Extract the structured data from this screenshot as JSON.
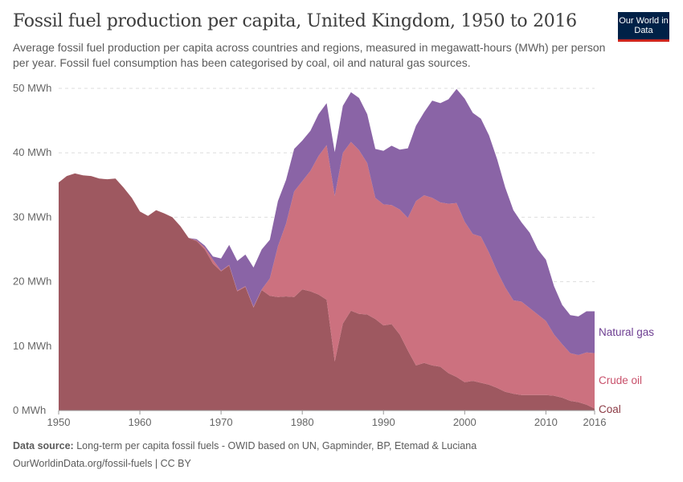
{
  "header": {
    "title": "Fossil fuel production per capita, United Kingdom, 1950 to 2016",
    "subtitle": "Average fossil fuel production per capita across countries and regions, measured in megawatt-hours (MWh) per person per year. Fossil fuel consumption has been categorised by coal, oil and natural gas sources.",
    "logo": "Our World in Data"
  },
  "footer": {
    "source_label": "Data source:",
    "source_text": "Long-term per capita fossil fuels - OWID based on UN, Gapminder, BP, Etemad & Luciana",
    "link": "OurWorldinData.org/fossil-fuels | CC BY"
  },
  "chart_data": {
    "type": "area",
    "stacked": true,
    "title": "Fossil fuel production per capita, United Kingdom, 1950 to 2016",
    "xlabel": "",
    "ylabel": "",
    "xlim": [
      1950,
      2016
    ],
    "ylim": [
      0,
      50
    ],
    "grid": "horizontal dashed",
    "legend": "right, inline labels",
    "x_ticks": [
      "1950",
      "1960",
      "1970",
      "1980",
      "1990",
      "2000",
      "2010",
      "2016"
    ],
    "y_ticks": [
      "0 MWh",
      "10 MWh",
      "20 MWh",
      "30 MWh",
      "40 MWh",
      "50 MWh"
    ],
    "x_start": 1950,
    "series": [
      {
        "name": "Coal",
        "color": "#9e5860",
        "label_color": "#8b3a44",
        "values": [
          35.4,
          36.4,
          36.8,
          36.5,
          36.4,
          36.0,
          35.9,
          36.0,
          34.6,
          33.0,
          30.9,
          30.2,
          31.1,
          30.6,
          30.0,
          28.6,
          26.8,
          26.3,
          25.0,
          22.8,
          21.6,
          22.5,
          18.5,
          19.2,
          16.0,
          18.7,
          17.8,
          17.6,
          17.7,
          17.6,
          18.8,
          18.5,
          18.0,
          17.2,
          7.6,
          13.5,
          15.5,
          15.0,
          14.9,
          14.2,
          13.2,
          13.4,
          11.8,
          9.3,
          7.0,
          7.4,
          7.0,
          6.8,
          5.8,
          5.2,
          4.4,
          4.6,
          4.3,
          4.0,
          3.5,
          2.9,
          2.6,
          2.4,
          2.4,
          2.4,
          2.4,
          2.3,
          2.0,
          1.5,
          1.3,
          0.9,
          0.3
        ]
      },
      {
        "name": "Crude oil",
        "color": "#cc717f",
        "label_color": "#c8506a",
        "values": [
          0,
          0,
          0,
          0,
          0,
          0,
          0,
          0,
          0,
          0,
          0,
          0,
          0,
          0,
          0,
          0,
          0,
          0.1,
          0.3,
          0.6,
          0.1,
          0.1,
          0.1,
          0.1,
          0.1,
          0.1,
          2.7,
          7.9,
          11.3,
          16.4,
          16.8,
          18.7,
          21.5,
          24.0,
          25.7,
          26.5,
          26.2,
          25.4,
          23.5,
          18.8,
          18.8,
          18.5,
          19.4,
          20.6,
          25.5,
          26.0,
          26.0,
          25.5,
          26.3,
          27.0,
          24.9,
          22.8,
          22.7,
          20.5,
          18.1,
          16.2,
          14.5,
          14.5,
          13.5,
          12.5,
          11.5,
          9.5,
          8.3,
          7.4,
          7.3,
          8.1,
          8.6
        ]
      },
      {
        "name": "Natural gas",
        "color": "#8a64a6",
        "label_color": "#6d3e91",
        "values": [
          0,
          0,
          0,
          0,
          0,
          0,
          0,
          0,
          0,
          0,
          0,
          0,
          0,
          0,
          0,
          0,
          0,
          0.2,
          0.3,
          0.5,
          1.9,
          3.1,
          4.6,
          4.9,
          6.1,
          6.2,
          6.0,
          7.0,
          6.8,
          6.6,
          6.3,
          6.2,
          6.5,
          6.5,
          6.8,
          7.3,
          7.7,
          8.1,
          7.6,
          7.6,
          8.3,
          9.2,
          9.3,
          10.8,
          11.7,
          12.9,
          15.1,
          15.4,
          16.2,
          17.7,
          19.1,
          18.8,
          18.3,
          18.2,
          17.4,
          15.5,
          14.0,
          12.3,
          11.7,
          10.1,
          9.5,
          7.5,
          6.1,
          5.9,
          6.0,
          6.4,
          6.5
        ]
      }
    ]
  }
}
